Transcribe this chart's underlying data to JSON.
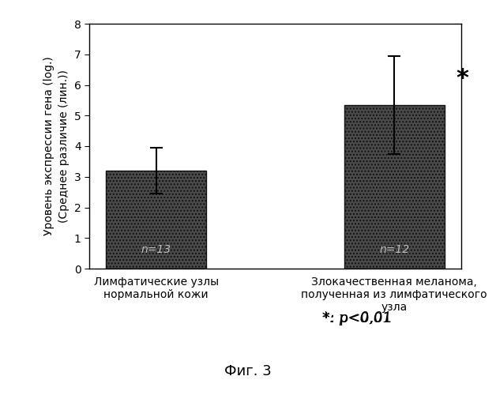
{
  "categories": [
    "Лимфатические узлы\nнормальной кожи",
    "Злокачественная меланома,\nполученная из лимфатического\nузла"
  ],
  "values": [
    3.2,
    5.35
  ],
  "errors": [
    0.75,
    1.6
  ],
  "bar_color": "#4a4a4a",
  "labels_inside": [
    "n=13",
    "n=12"
  ],
  "ylabel_line1": "Уровень экспрессии гена (log.)",
  "ylabel_line2": "(Среднее различие (лин.))",
  "ylim": [
    0,
    8
  ],
  "yticks": [
    0,
    1,
    2,
    3,
    4,
    5,
    6,
    7,
    8
  ],
  "asterisk_text": "*",
  "pvalue_text": "*: p<0,01",
  "fig_label": "Фиг. 3",
  "background_color": "#ffffff",
  "label_fontsize": 10,
  "tick_fontsize": 10,
  "inside_label_fontsize": 10,
  "asterisk_fontsize": 22,
  "pvalue_fontsize": 13,
  "fig_label_fontsize": 13
}
